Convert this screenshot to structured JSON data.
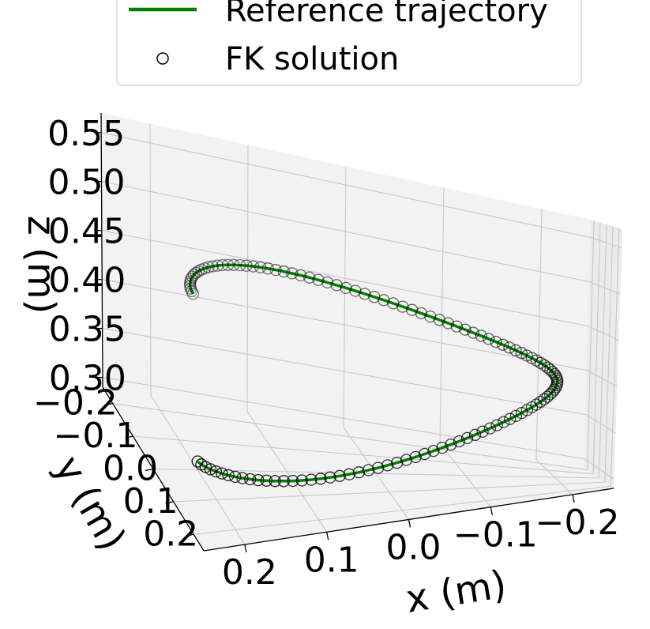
{
  "chart_data": {
    "type": "line",
    "projection": "3d",
    "title": "",
    "xlabel": "x (m)",
    "ylabel": "y (m)",
    "zlabel": "z (m)",
    "xlim": [
      -0.25,
      0.25
    ],
    "ylim": [
      -0.25,
      0.25
    ],
    "zlim": [
      0.29,
      0.57
    ],
    "xticks": [
      "0.2",
      "0.1",
      "0.0",
      "−0.1",
      "−0.2"
    ],
    "xtick_values": [
      0.2,
      0.1,
      0.0,
      -0.1,
      -0.2
    ],
    "yticks": [
      "−0.2",
      "−0.1",
      "0.0",
      "0.1",
      "0.2"
    ],
    "ytick_values": [
      -0.2,
      -0.1,
      0.0,
      0.1,
      0.2
    ],
    "zticks": [
      "0.55",
      "0.50",
      "0.45",
      "0.40",
      "0.35",
      "0.30"
    ],
    "ztick_values": [
      0.55,
      0.5,
      0.45,
      0.4,
      0.35,
      0.3
    ],
    "grid": true,
    "legend": {
      "placement": "top-center",
      "entries": [
        {
          "label": "Reference trajectory",
          "kind": "line",
          "color": "#008000"
        },
        {
          "label": "FK solution",
          "kind": "marker",
          "color": "#000000"
        }
      ]
    },
    "series": [
      {
        "name": "Reference trajectory",
        "kind": "line",
        "color": "#008000",
        "trajectory": {
          "type": "helix",
          "radius": 0.2,
          "turns": 1.0,
          "start_angle_deg": 0,
          "z_start": 0.3,
          "z_end": 0.5
        }
      },
      {
        "name": "FK solution",
        "kind": "scatter",
        "color": "#000000",
        "point_count": 120
      }
    ]
  }
}
